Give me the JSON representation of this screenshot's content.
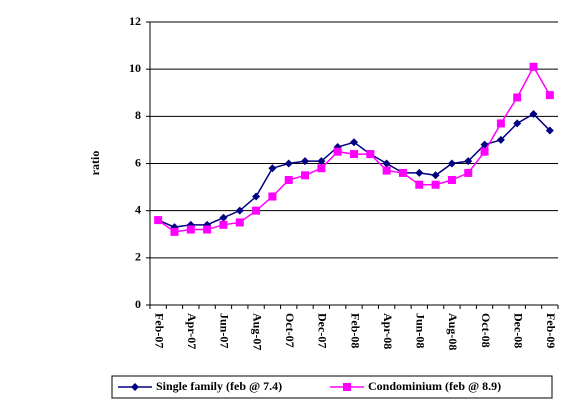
{
  "chart_data": {
    "type": "line",
    "y_label": "ratio",
    "categories": [
      "Feb-07",
      null,
      "Apr-07",
      null,
      "Jun-07",
      null,
      "Aug-07",
      null,
      "Oct-07",
      null,
      "Dec-07",
      null,
      "Feb-08",
      null,
      "Apr-08",
      null,
      "Jun-08",
      null,
      "Aug-08",
      null,
      "Oct-08",
      null,
      "Dec-08",
      null,
      "Feb-09"
    ],
    "series": [
      {
        "name": "Single family (feb @ 7.4)",
        "color": "#000080",
        "marker": "diamond",
        "values": [
          3.6,
          3.3,
          3.4,
          3.4,
          3.7,
          4.0,
          4.6,
          5.8,
          6.0,
          6.1,
          6.1,
          6.7,
          6.9,
          6.4,
          6.0,
          5.6,
          5.6,
          5.5,
          6.0,
          6.1,
          6.8,
          7.0,
          7.7,
          8.1,
          7.4
        ]
      },
      {
        "name": "Condominium (feb @ 8.9)",
        "color": "#ff00ff",
        "marker": "square",
        "values": [
          3.6,
          3.1,
          3.2,
          3.2,
          3.4,
          3.5,
          4.0,
          4.6,
          5.3,
          5.5,
          5.8,
          6.5,
          6.4,
          6.4,
          5.7,
          5.6,
          5.1,
          5.1,
          5.3,
          5.6,
          6.5,
          7.7,
          8.8,
          10.1,
          8.9
        ]
      }
    ],
    "ylim": [
      0,
      12
    ],
    "yticks": [
      0,
      2,
      4,
      6,
      8,
      10,
      12
    ],
    "grid": true
  }
}
